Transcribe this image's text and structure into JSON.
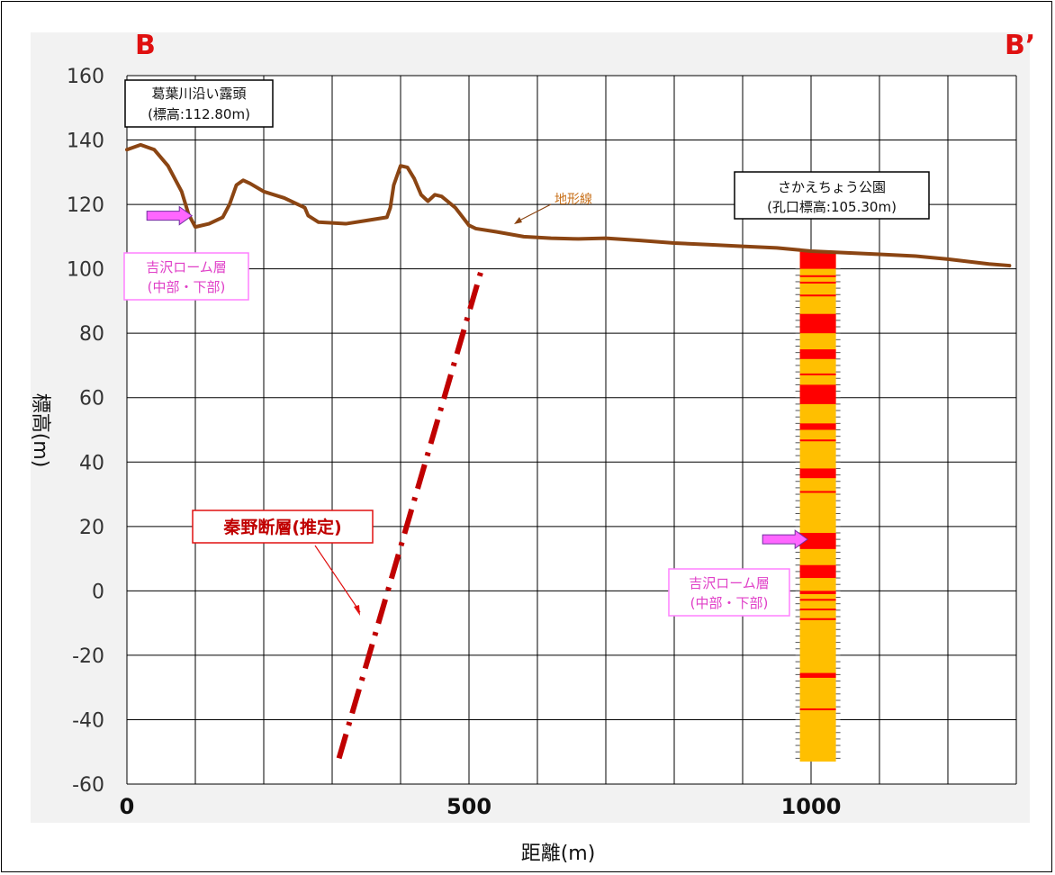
{
  "section": {
    "start_label": "B",
    "end_label": "B’"
  },
  "chart_data": {
    "type": "line",
    "xlabel": "距離(m)",
    "ylabel": "標高(m)",
    "xlim": [
      0,
      1300
    ],
    "ylim": [
      -60,
      160
    ],
    "x_ticks": [
      0,
      500,
      1000
    ],
    "y_ticks": [
      160,
      140,
      120,
      100,
      80,
      60,
      40,
      20,
      0,
      -20,
      -40,
      -60
    ],
    "x_grid_step": 100,
    "grid": true,
    "topography": {
      "label": "地形線",
      "color": "#8b4513",
      "x": [
        0,
        20,
        40,
        60,
        80,
        90,
        100,
        120,
        140,
        150,
        160,
        170,
        180,
        200,
        230,
        260,
        265,
        280,
        320,
        350,
        380,
        385,
        390,
        400,
        410,
        420,
        430,
        440,
        450,
        460,
        480,
        500,
        510,
        540,
        580,
        620,
        660,
        700,
        750,
        800,
        850,
        900,
        950,
        1000,
        1050,
        1100,
        1150,
        1200,
        1260,
        1290
      ],
      "y": [
        137,
        138.5,
        137,
        132,
        124,
        117,
        113,
        114,
        116,
        120,
        126,
        127.5,
        126.5,
        124,
        122,
        119,
        116.5,
        114.5,
        114,
        115,
        116,
        119,
        126,
        132,
        131.5,
        128,
        123,
        121,
        123,
        122.5,
        119,
        113.5,
        112.5,
        111.5,
        110,
        109.5,
        109.3,
        109.5,
        108.8,
        108,
        107.5,
        107,
        106.5,
        105.5,
        105,
        104.5,
        104,
        103,
        101.5,
        101
      ]
    },
    "fault": {
      "label": "秦野断層(推定)",
      "color": "#c00000",
      "x": [
        310,
        520
      ],
      "y": [
        -52,
        101
      ]
    },
    "borehole": {
      "title": "さかえちょう公園",
      "subtitle": "(孔口標高:105.30m)",
      "x": 1010,
      "top": 105.3,
      "bottom": -53,
      "base_color": "#ffbf00",
      "layer_color": "#ff0000",
      "red_layers": [
        [
          105.3,
          100
        ],
        [
          98,
          97.5
        ],
        [
          96,
          95.5
        ],
        [
          92,
          91.5
        ],
        [
          86,
          80
        ],
        [
          75,
          72
        ],
        [
          67.5,
          67
        ],
        [
          64,
          58
        ],
        [
          52,
          50
        ],
        [
          47,
          46.5
        ],
        [
          38,
          35
        ],
        [
          31,
          30.5
        ],
        [
          18,
          13
        ],
        [
          8,
          4
        ],
        [
          0,
          -1
        ],
        [
          -2.5,
          -3
        ],
        [
          -5.5,
          -6
        ],
        [
          -8.5,
          -9
        ],
        [
          -25.5,
          -27
        ],
        [
          -36.5,
          -37
        ]
      ]
    },
    "outcrop_label": {
      "line1": "葛葉川沿い露頭",
      "line2": "(標高:112.80m)"
    },
    "loam_labels": [
      {
        "line1": "吉沢ローム層",
        "line2": "(中部・下部)",
        "x": 55,
        "y": 96
      },
      {
        "line1": "吉沢ローム層",
        "line2": "(中部・下部)",
        "x": 940,
        "y": -1
      }
    ],
    "arrows": [
      {
        "x": 95,
        "y": 116.5,
        "color": "#ff66ff"
      },
      {
        "x": 995,
        "y": 16,
        "color": "#ff66ff"
      }
    ]
  }
}
